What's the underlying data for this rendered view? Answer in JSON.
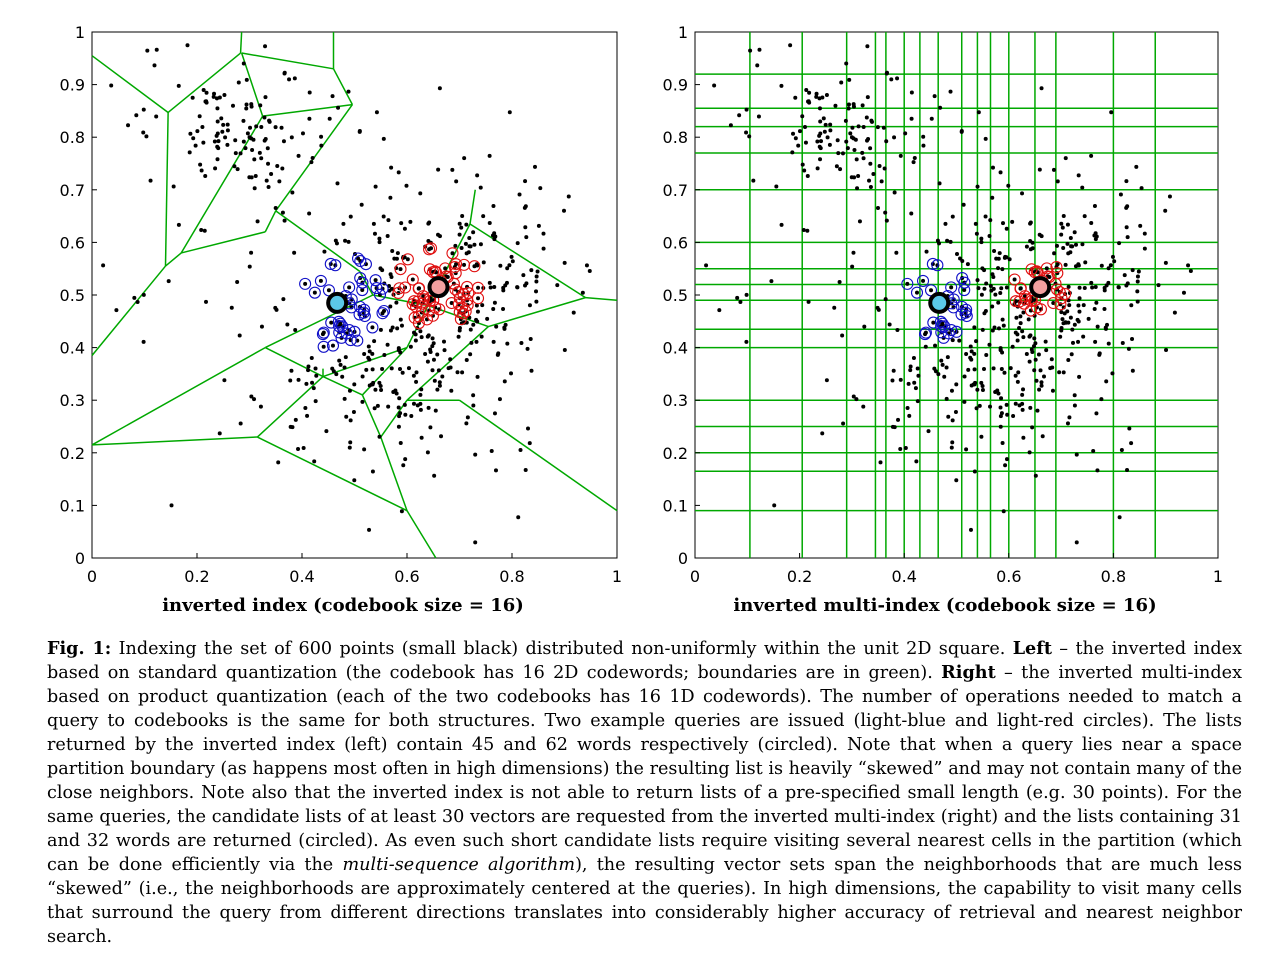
{
  "chart_data": [
    {
      "type": "scatter",
      "xlabel": "inverted index (codebook size = 16)",
      "xlim": [
        0,
        1
      ],
      "ylim": [
        0,
        1
      ],
      "x_ticks": [
        "0",
        "0.2",
        "0.4",
        "0.6",
        "0.8",
        "1"
      ],
      "y_ticks": [
        "0",
        "0.1",
        "0.2",
        "0.3",
        "0.4",
        "0.5",
        "0.6",
        "0.7",
        "0.8",
        "0.9",
        "1"
      ],
      "num_points": 600,
      "boundary_color": "#00a800",
      "queries": [
        {
          "x": 0.467,
          "y": 0.485,
          "color": "#5bc8e8",
          "list_size": 45,
          "circle_color": "#1010c8"
        },
        {
          "x": 0.66,
          "y": 0.515,
          "color": "#f2a0a0",
          "list_size": 62,
          "circle_color": "#e01010"
        }
      ],
      "voronoi_edges": [
        [
          [
            0.0,
            0.955
          ],
          [
            0.145,
            0.847
          ]
        ],
        [
          [
            0.145,
            0.847
          ],
          [
            0.283,
            0.96
          ]
        ],
        [
          [
            0.283,
            0.96
          ],
          [
            0.285,
            1.0
          ]
        ],
        [
          [
            0.145,
            0.847
          ],
          [
            0.14,
            0.555
          ]
        ],
        [
          [
            0.14,
            0.555
          ],
          [
            0.0,
            0.385
          ]
        ],
        [
          [
            0.285,
            0.96
          ],
          [
            0.46,
            0.93
          ]
        ],
        [
          [
            0.46,
            1.0
          ],
          [
            0.46,
            0.93
          ]
        ],
        [
          [
            0.46,
            0.93
          ],
          [
            0.496,
            0.862
          ]
        ],
        [
          [
            0.496,
            0.862
          ],
          [
            0.325,
            0.84
          ]
        ],
        [
          [
            0.325,
            0.84
          ],
          [
            0.285,
            0.96
          ]
        ],
        [
          [
            0.325,
            0.84
          ],
          [
            0.17,
            0.58
          ]
        ],
        [
          [
            0.17,
            0.58
          ],
          [
            0.14,
            0.555
          ]
        ],
        [
          [
            0.17,
            0.58
          ],
          [
            0.33,
            0.62
          ]
        ],
        [
          [
            0.33,
            0.62
          ],
          [
            0.35,
            0.66
          ]
        ],
        [
          [
            0.35,
            0.66
          ],
          [
            0.496,
            0.862
          ]
        ],
        [
          [
            0.35,
            0.66
          ],
          [
            0.51,
            0.545
          ]
        ],
        [
          [
            0.51,
            0.545
          ],
          [
            0.535,
            0.5
          ]
        ],
        [
          [
            0.535,
            0.5
          ],
          [
            0.33,
            0.4
          ]
        ],
        [
          [
            0.33,
            0.4
          ],
          [
            0.0,
            0.215
          ]
        ],
        [
          [
            0.33,
            0.4
          ],
          [
            0.44,
            0.345
          ]
        ],
        [
          [
            0.44,
            0.345
          ],
          [
            0.6,
            0.4
          ]
        ],
        [
          [
            0.6,
            0.4
          ],
          [
            0.64,
            0.48
          ]
        ],
        [
          [
            0.64,
            0.48
          ],
          [
            0.535,
            0.5
          ]
        ],
        [
          [
            0.64,
            0.48
          ],
          [
            0.72,
            0.635
          ]
        ],
        [
          [
            0.72,
            0.635
          ],
          [
            0.73,
            0.7
          ]
        ],
        [
          [
            0.72,
            0.635
          ],
          [
            0.94,
            0.495
          ]
        ],
        [
          [
            0.94,
            0.495
          ],
          [
            1.0,
            0.49
          ]
        ],
        [
          [
            0.94,
            0.495
          ],
          [
            0.755,
            0.44
          ]
        ],
        [
          [
            0.755,
            0.44
          ],
          [
            0.64,
            0.48
          ]
        ],
        [
          [
            0.44,
            0.345
          ],
          [
            0.44,
            0.36
          ]
        ],
        [
          [
            0.44,
            0.345
          ],
          [
            0.315,
            0.23
          ]
        ],
        [
          [
            0.315,
            0.23
          ],
          [
            0.0,
            0.215
          ]
        ],
        [
          [
            0.44,
            0.345
          ],
          [
            0.515,
            0.31
          ]
        ],
        [
          [
            0.515,
            0.31
          ],
          [
            0.6,
            0.4
          ]
        ],
        [
          [
            0.515,
            0.31
          ],
          [
            0.55,
            0.23
          ]
        ],
        [
          [
            0.55,
            0.23
          ],
          [
            0.6,
            0.3
          ]
        ],
        [
          [
            0.6,
            0.3
          ],
          [
            0.755,
            0.44
          ]
        ],
        [
          [
            0.6,
            0.3
          ],
          [
            0.7,
            0.3
          ]
        ],
        [
          [
            0.7,
            0.3
          ],
          [
            1.0,
            0.09
          ]
        ],
        [
          [
            0.55,
            0.23
          ],
          [
            0.6,
            0.09
          ]
        ],
        [
          [
            0.6,
            0.09
          ],
          [
            0.655,
            0.0
          ]
        ],
        [
          [
            0.6,
            0.09
          ],
          [
            0.315,
            0.23
          ]
        ]
      ]
    },
    {
      "type": "scatter",
      "xlabel": "inverted multi-index (codebook size = 16)",
      "xlim": [
        0,
        1
      ],
      "ylim": [
        0,
        1
      ],
      "x_ticks": [
        "0",
        "0.2",
        "0.4",
        "0.6",
        "0.8",
        "1"
      ],
      "y_ticks": [
        "0",
        "0.1",
        "0.2",
        "0.3",
        "0.4",
        "0.5",
        "0.6",
        "0.7",
        "0.8",
        "0.9",
        "1"
      ],
      "num_points": 600,
      "grid_color": "#00a800",
      "queries": [
        {
          "x": 0.467,
          "y": 0.485,
          "color": "#5bc8e8",
          "list_size": 31,
          "circle_color": "#1010c8"
        },
        {
          "x": 0.66,
          "y": 0.515,
          "color": "#f2a0a0",
          "list_size": 32,
          "circle_color": "#e01010"
        }
      ],
      "grid_x": [
        0.105,
        0.205,
        0.29,
        0.345,
        0.365,
        0.4,
        0.43,
        0.465,
        0.51,
        0.54,
        0.565,
        0.6,
        0.65,
        0.69,
        0.8,
        0.88
      ],
      "grid_y": [
        0.09,
        0.165,
        0.2,
        0.25,
        0.3,
        0.4,
        0.435,
        0.49,
        0.52,
        0.55,
        0.6,
        0.7,
        0.77,
        0.82,
        0.855,
        0.92
      ]
    }
  ],
  "caption": {
    "fig_label": "Fig. 1:",
    "t1": " Indexing the set of 600 points (small black) distributed non-uniformly within the unit 2D square. ",
    "left_label": "Left",
    "t2": " – the inverted index based on standard quantization (the codebook has 16 2D codewords; boundaries are in green). ",
    "right_label": "Right",
    "t3": " – the inverted multi-index based on product quantization (each of the two codebooks has 16 1D codewords). The number of operations needed to match a query to codebooks is the same for both structures. Two example queries are issued (light-blue and light-red circles). The lists returned by the inverted index (left) contain 45 and 62 words respectively (circled). Note that when a query lies near a space partition boundary (as happens most often in high dimensions) the resulting list is heavily “skewed” and may not contain many of the close neighbors. Note also that the inverted index is not able to return lists of a pre-specified small length (e.g. 30 points). For the same queries, the candidate lists of at least 30 vectors are requested from the inverted multi-index (right) and the lists containing 31 and 32 words are returned (circled). As even such short candidate lists require visiting several nearest cells in the partition (which can be done efficiently via the ",
    "italic": "multi-sequence algorithm",
    "t4": "), the resulting vector sets span the neighborhoods that are much less “skewed” (i.e., the neighborhoods are approximately centered at the queries). In high dimensions, the capability to visit many cells that surround the query from different directions translates into considerably higher accuracy of retrieval and nearest neighbor search."
  }
}
